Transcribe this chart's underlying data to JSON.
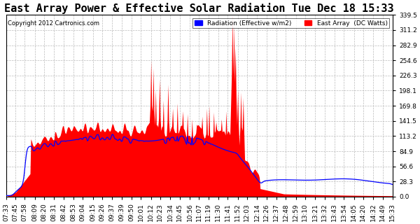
{
  "title": "East Array Power & Effective Solar Radiation Tue Dec 18 15:33",
  "copyright": "Copyright 2012 Cartronics.com",
  "legend_radiation": "Radiation (Effective w/m2)",
  "legend_array": "East Array  (DC Watts)",
  "ylabel_right_values": [
    339.5,
    311.2,
    282.9,
    254.6,
    226.3,
    198.1,
    169.8,
    141.5,
    113.2,
    84.9,
    56.6,
    28.3,
    0.0
  ],
  "ymax": 339.5,
  "ymin": 0.0,
  "bg_color": "#ffffff",
  "plot_bg_color": "#ffffff",
  "radiation_color": "#0000ff",
  "array_color": "#ff0000",
  "grid_color": "#bbbbbb",
  "title_fontsize": 11,
  "tick_fontsize": 6.5,
  "time_labels": [
    "07:33",
    "07:45",
    "07:58",
    "08:09",
    "08:20",
    "08:31",
    "08:42",
    "08:53",
    "09:04",
    "09:15",
    "09:26",
    "09:37",
    "09:39",
    "09:50",
    "10:01",
    "10:12",
    "10:23",
    "10:34",
    "10:45",
    "10:56",
    "11:07",
    "11:19",
    "11:30",
    "11:41",
    "11:52",
    "12:03",
    "12:14",
    "12:26",
    "12:37",
    "12:48",
    "12:59",
    "13:10",
    "13:21",
    "13:32",
    "13:43",
    "13:54",
    "14:05",
    "14:20",
    "14:32",
    "14:49",
    "15:33"
  ]
}
